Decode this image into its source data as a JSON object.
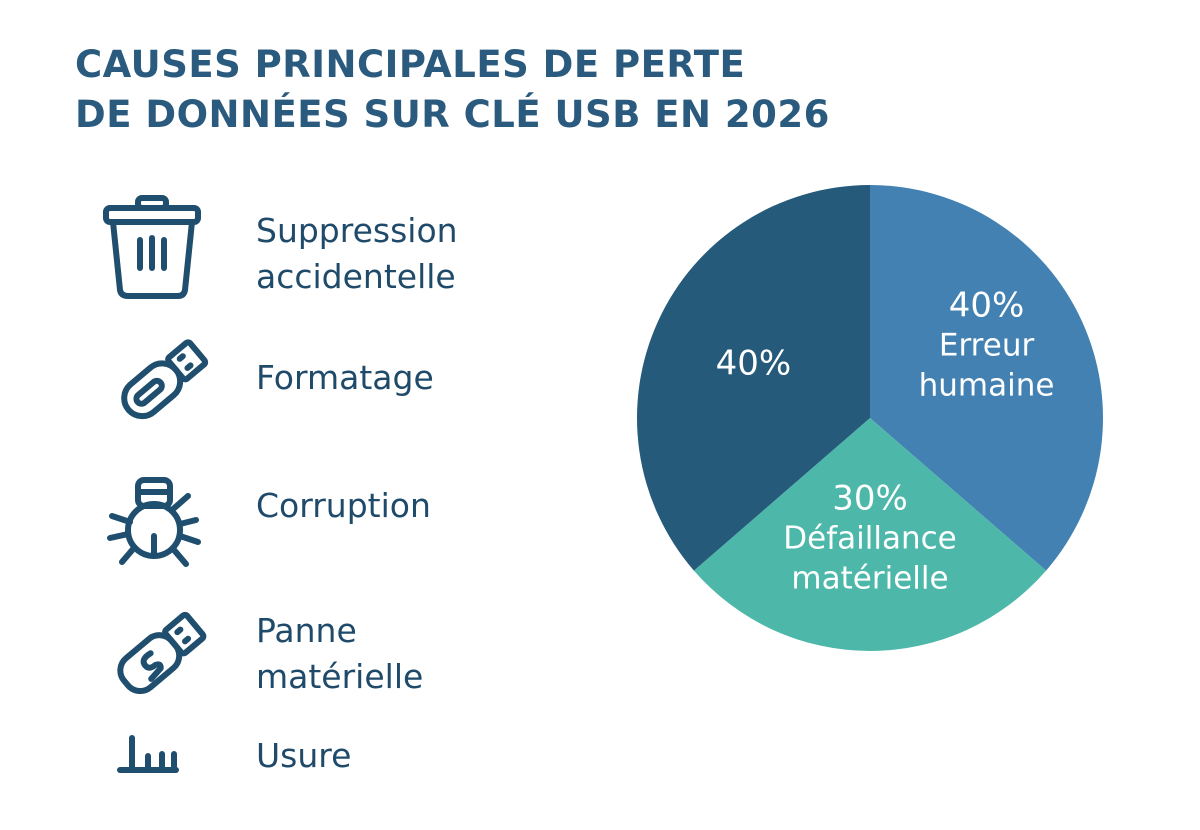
{
  "title_lines": [
    "CAUSES PRINCIPALES DE PERTE",
    "DE DONNÉES SUR CLÉ USB EN 2026"
  ],
  "causes": [
    {
      "icon": "trash-icon",
      "label_lines": [
        "Suppression",
        "accidentelle"
      ]
    },
    {
      "icon": "usb-drive-icon",
      "label_lines": [
        "Formatage"
      ]
    },
    {
      "icon": "bug-icon",
      "label_lines": [
        "Corruption"
      ]
    },
    {
      "icon": "usb-drive-broken-icon",
      "label_lines": [
        "Panne",
        "matérielle"
      ]
    },
    {
      "icon": "wear-icon",
      "label_lines": [
        "Usure"
      ]
    }
  ],
  "colors": {
    "text": "#1f4a6a",
    "title": "#2a5a7e",
    "icon": "#1f4e6e"
  },
  "chart_data": {
    "type": "pie",
    "start": "12 o'clock, clockwise",
    "slices": [
      {
        "value": 40,
        "value_label": "40%",
        "name": "Erreur humaine",
        "name_lines": [
          "Erreur",
          "humaine"
        ],
        "color": "#4281b1"
      },
      {
        "value": 30,
        "value_label": "30%",
        "name": "Défaillance matérielle",
        "name_lines": [
          "Défaillance",
          "matérielle"
        ],
        "color": "#4db8a9"
      },
      {
        "value": 40,
        "value_label": "40%",
        "name": "",
        "name_lines": [],
        "color": "#255a7b"
      }
    ]
  }
}
